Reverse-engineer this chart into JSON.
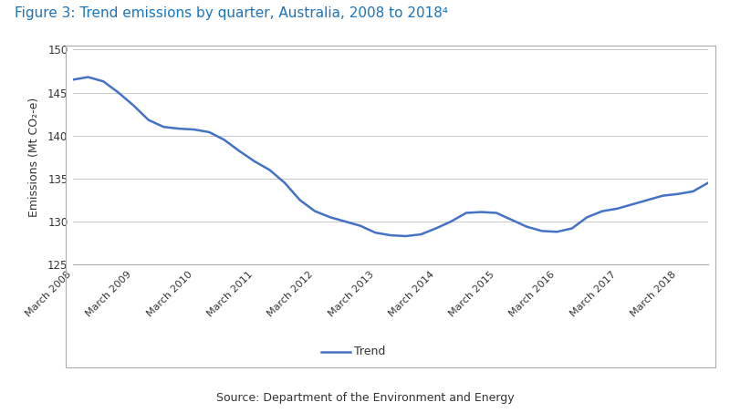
{
  "title": "Figure 3: Trend emissions by quarter, Australia, 2008 to 2018⁴",
  "ylabel": "Emissions (Mt CO₂-e)",
  "source": "Source: Department of the Environment and Energy",
  "legend_label": "Trend",
  "title_color": "#1B75BB",
  "line_color": "#4472C4",
  "background_color": "#FFFFFF",
  "plot_background": "#FFFFFF",
  "ylim": [
    125,
    150
  ],
  "yticks": [
    125,
    130,
    135,
    140,
    145,
    150
  ],
  "xtick_labels": [
    "March 2008",
    "March 2009",
    "March 2010",
    "March 2011",
    "March 2012",
    "March 2013",
    "March 2014",
    "March 2015",
    "March 2016",
    "March 2017",
    "March 2018"
  ],
  "trend_values": [
    146.5,
    146.8,
    146.3,
    145.0,
    143.5,
    141.8,
    141.0,
    140.8,
    140.7,
    140.4,
    139.5,
    138.2,
    137.0,
    136.0,
    134.5,
    132.5,
    131.2,
    130.5,
    130.0,
    129.5,
    128.7,
    128.4,
    128.3,
    128.5,
    129.2,
    130.0,
    131.0,
    131.1,
    131.0,
    130.2,
    129.4,
    128.9,
    128.8,
    129.2,
    130.5,
    131.2,
    131.5,
    132.0,
    132.5,
    133.0,
    133.2,
    133.5,
    134.5
  ]
}
